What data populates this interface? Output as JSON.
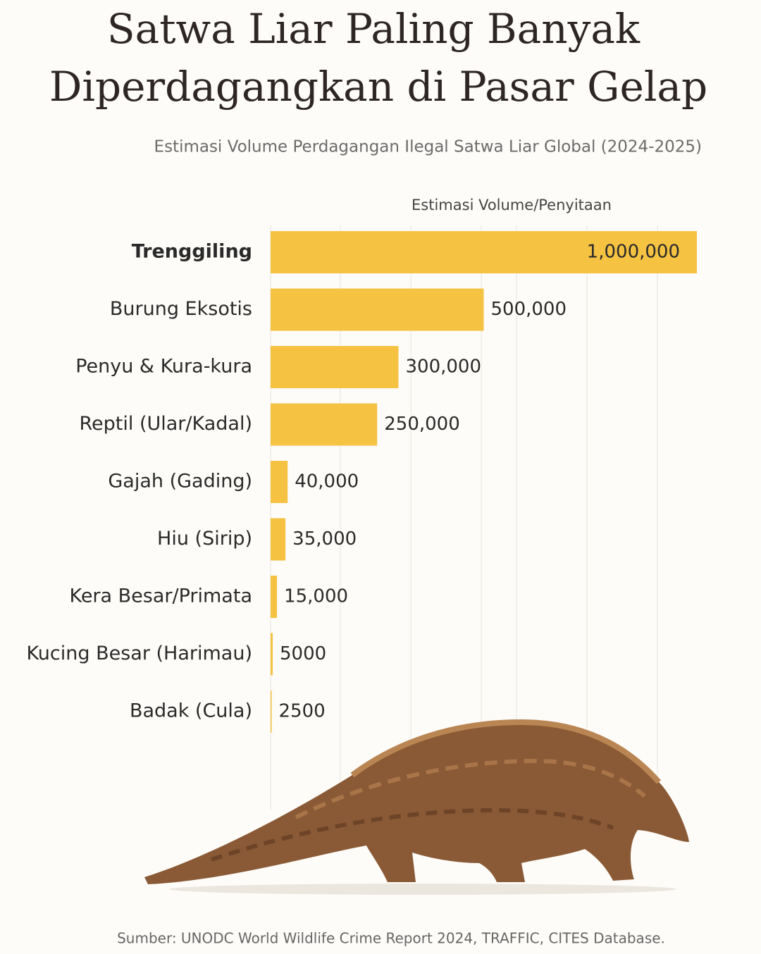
{
  "chart_data": {
    "type": "bar",
    "orientation": "horizontal",
    "title": [
      "Satwa Liar Paling Banyak",
      "Diperdagangkan di Pasar Gelap"
    ],
    "subtitle": "Estimasi Volume Perdagangan Ilegal Satwa Liar Global (2024-2025)",
    "x_label": "Estimasi Volume/Penyitaan",
    "source": "Sumber: UNODC World Wildlife Crime Report 2024, TRAFFIC, CITES Database.",
    "categories": [
      "Trenggiling",
      "Burung Eksotis",
      "Penyu & Kura-kura",
      "Reptil (Ular/Kadal)",
      "Gajah (Gading)",
      "Hiu (Sirip)",
      "Kera Besar/Primata",
      "Kucing Besar (Harimau)",
      "Badak (Cula)"
    ],
    "values": [
      1000000,
      500000,
      300000,
      250000,
      40000,
      35000,
      15000,
      5000,
      2500
    ],
    "value_labels": [
      "1,000,000",
      "500,000",
      "300,000",
      "250,000",
      "40,000",
      "35,000",
      "15,000",
      "5000",
      "2500"
    ],
    "color": "#f5c242",
    "xlim": [
      0,
      1000000
    ]
  }
}
